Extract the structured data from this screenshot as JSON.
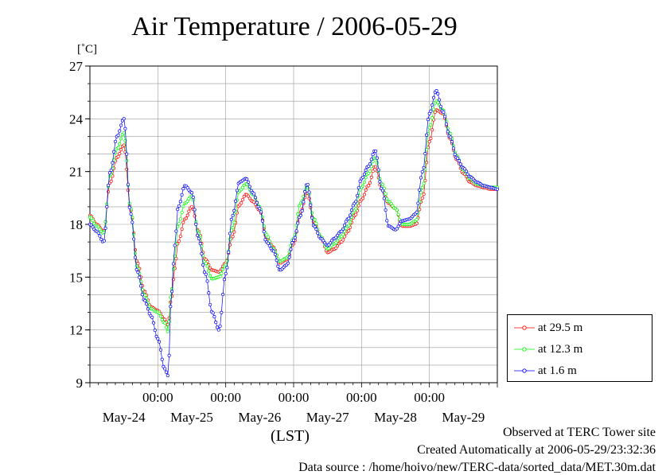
{
  "chart_data": {
    "type": "line",
    "title": "Air Temperature / 2006-05-29",
    "ylabel": "[˚C]",
    "xlabel": "(LST)",
    "ylim": [
      9,
      27
    ],
    "yticks": [
      9,
      12,
      15,
      18,
      21,
      24,
      27
    ],
    "xlim_days": [
      0,
      6
    ],
    "time_tick_label": "00:00",
    "time_ticks_days": [
      1,
      2,
      3,
      4,
      5
    ],
    "date_labels": [
      "May-24",
      "May-25",
      "May-26",
      "May-27",
      "May-28",
      "May-29"
    ],
    "date_positions_days": [
      0.5,
      1.5,
      2.5,
      3.5,
      4.5,
      5.5
    ],
    "grid": true,
    "legend_position": "right-bottom outside",
    "x_unit_note": "x values are days from May-23 00:00 LST",
    "series": [
      {
        "name": "at 29.5 m",
        "color": "#ff0000",
        "x": [
          0.0,
          0.1,
          0.2,
          0.3,
          0.4,
          0.5,
          0.6,
          0.7,
          0.8,
          0.9,
          1.0,
          1.1,
          1.15,
          1.2,
          1.25,
          1.3,
          1.4,
          1.5,
          1.6,
          1.7,
          1.8,
          1.9,
          2.0,
          2.1,
          2.2,
          2.3,
          2.4,
          2.5,
          2.6,
          2.7,
          2.8,
          2.9,
          3.0,
          3.1,
          3.2,
          3.3,
          3.4,
          3.5,
          3.6,
          3.7,
          3.8,
          3.9,
          4.0,
          4.1,
          4.2,
          4.3,
          4.4,
          4.5,
          4.6,
          4.7,
          4.8,
          4.9,
          5.0,
          5.1,
          5.2,
          5.3,
          5.4,
          5.5,
          5.6,
          5.7,
          5.8,
          5.9,
          6.0
        ],
        "y": [
          18.5,
          18.0,
          17.6,
          20.4,
          21.8,
          22.5,
          18.8,
          15.8,
          14.2,
          13.3,
          13.1,
          12.6,
          12.3,
          13.8,
          15.5,
          17.0,
          18.3,
          19.0,
          17.6,
          16.0,
          15.4,
          15.3,
          15.8,
          17.3,
          19.1,
          19.7,
          19.3,
          18.8,
          17.3,
          16.7,
          15.8,
          16.0,
          16.9,
          18.7,
          19.8,
          18.1,
          17.3,
          16.4,
          16.6,
          17.0,
          17.6,
          18.5,
          19.4,
          20.2,
          21.3,
          20.0,
          19.2,
          18.9,
          17.9,
          17.9,
          18.0,
          19.5,
          22.7,
          24.5,
          24.3,
          22.9,
          21.7,
          20.9,
          20.4,
          20.2,
          20.1,
          20.0,
          20.0
        ]
      },
      {
        "name": "at 12.3 m",
        "color": "#00ff00",
        "x": [
          0.0,
          0.1,
          0.2,
          0.3,
          0.4,
          0.5,
          0.6,
          0.7,
          0.8,
          0.9,
          1.0,
          1.1,
          1.15,
          1.2,
          1.25,
          1.3,
          1.4,
          1.5,
          1.6,
          1.7,
          1.8,
          1.9,
          2.0,
          2.1,
          2.2,
          2.3,
          2.4,
          2.5,
          2.6,
          2.7,
          2.8,
          2.9,
          3.0,
          3.1,
          3.2,
          3.3,
          3.4,
          3.5,
          3.6,
          3.7,
          3.8,
          3.9,
          4.0,
          4.1,
          4.2,
          4.3,
          4.4,
          4.5,
          4.6,
          4.7,
          4.8,
          4.9,
          5.0,
          5.1,
          5.2,
          5.3,
          5.4,
          5.5,
          5.6,
          5.7,
          5.8,
          5.9,
          6.0
        ],
        "y": [
          18.4,
          17.9,
          17.5,
          20.8,
          22.3,
          23.2,
          18.9,
          15.5,
          14.0,
          13.2,
          13.0,
          12.4,
          11.9,
          14.2,
          16.2,
          18.0,
          19.2,
          19.6,
          17.5,
          15.8,
          14.9,
          15.0,
          15.7,
          17.8,
          19.9,
          20.3,
          19.7,
          19.0,
          17.4,
          16.6,
          15.9,
          16.1,
          17.2,
          19.2,
          20.1,
          18.3,
          17.3,
          16.6,
          16.9,
          17.3,
          17.9,
          18.8,
          20.1,
          20.9,
          21.8,
          20.3,
          19.3,
          18.9,
          18.0,
          18.0,
          18.2,
          20.1,
          23.5,
          25.0,
          24.5,
          23.2,
          21.9,
          21.1,
          20.6,
          20.3,
          20.2,
          20.1,
          20.1
        ]
      },
      {
        "name": "at 1.6 m",
        "color": "#0000ff",
        "x": [
          0.0,
          0.1,
          0.2,
          0.3,
          0.4,
          0.5,
          0.6,
          0.7,
          0.8,
          0.9,
          1.0,
          1.1,
          1.15,
          1.2,
          1.25,
          1.3,
          1.4,
          1.5,
          1.6,
          1.7,
          1.8,
          1.9,
          2.0,
          2.1,
          2.2,
          2.3,
          2.4,
          2.5,
          2.6,
          2.7,
          2.8,
          2.9,
          3.0,
          3.1,
          3.2,
          3.3,
          3.4,
          3.5,
          3.6,
          3.7,
          3.8,
          3.9,
          4.0,
          4.1,
          4.2,
          4.3,
          4.4,
          4.5,
          4.6,
          4.7,
          4.8,
          4.9,
          5.0,
          5.1,
          5.2,
          5.3,
          5.4,
          5.5,
          5.6,
          5.7,
          5.8,
          5.9,
          6.0
        ],
        "y": [
          18.0,
          17.6,
          17.0,
          21.0,
          23.0,
          24.0,
          18.6,
          15.3,
          13.7,
          12.8,
          11.5,
          9.8,
          9.4,
          14.0,
          16.8,
          19.0,
          20.2,
          19.8,
          17.2,
          15.2,
          13.0,
          12.0,
          15.2,
          18.5,
          20.4,
          20.6,
          19.8,
          18.9,
          17.0,
          16.5,
          15.4,
          15.7,
          17.1,
          18.5,
          20.3,
          17.9,
          17.2,
          16.8,
          17.2,
          17.6,
          18.3,
          19.2,
          20.6,
          21.3,
          22.2,
          20.0,
          17.9,
          17.7,
          18.2,
          18.3,
          18.6,
          21.0,
          24.3,
          25.6,
          24.4,
          23.0,
          21.8,
          21.2,
          20.7,
          20.4,
          20.2,
          20.1,
          20.0
        ]
      }
    ]
  },
  "legend": {
    "items": [
      {
        "label": "at 29.5 m",
        "color": "#ff0000"
      },
      {
        "label": "at 12.3 m",
        "color": "#00ff00"
      },
      {
        "label": "at 1.6 m",
        "color": "#0000ff"
      }
    ]
  },
  "footer": {
    "site": "Observed at TERC Tower site",
    "created": "Created Automatically at 2006-05-29/23:32:36",
    "source": "Data source : /home/hoivo/new/TERC-data/sorted_data/MET.30m.dat"
  }
}
